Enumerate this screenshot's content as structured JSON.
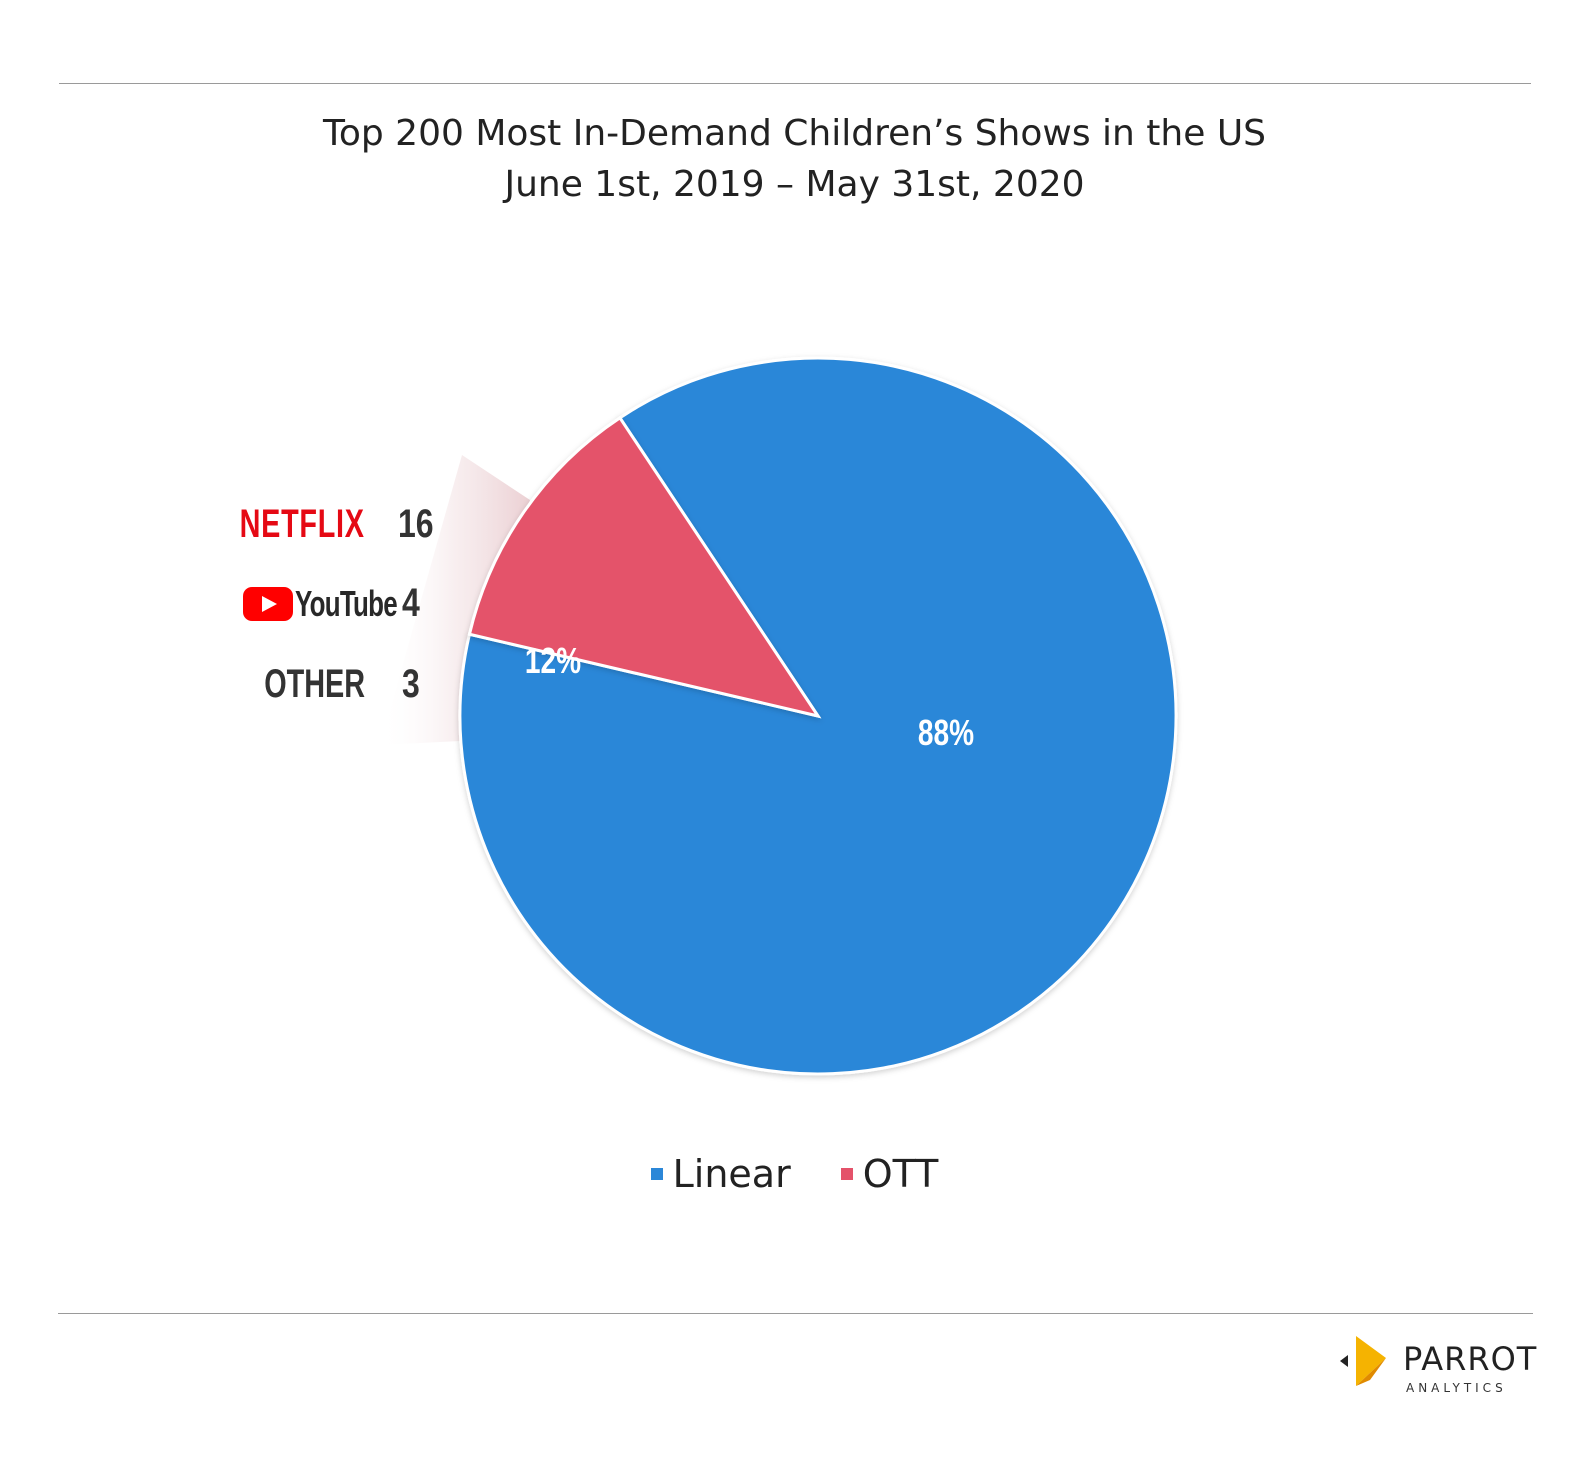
{
  "chart_data": {
    "type": "pie",
    "title": "Top 200 Most In-Demand Children’s Shows in the US",
    "subtitle": "June 1st, 2019 – May 31st, 2020",
    "slices": [
      {
        "name": "Linear",
        "value": 88,
        "label": "88%",
        "color": "#2b87d8"
      },
      {
        "name": "OTT",
        "value": 12,
        "label": "12%",
        "color": "#e4526a"
      }
    ],
    "legend": {
      "placement": "bottom-center",
      "entries": [
        "Linear",
        "OTT"
      ]
    },
    "ott_breakdown": [
      {
        "name": "NETFLIX",
        "value": 16,
        "icon": "netflix-wordmark",
        "color": "#e50914"
      },
      {
        "name": "YouTube",
        "value": 4,
        "icon": "youtube-logo",
        "color": "#ff0000"
      },
      {
        "name": "OTHER",
        "value": 3,
        "icon": null,
        "color": "#333333"
      }
    ]
  },
  "branding": {
    "name": "PARROT",
    "sub": "ANALYTICS"
  }
}
